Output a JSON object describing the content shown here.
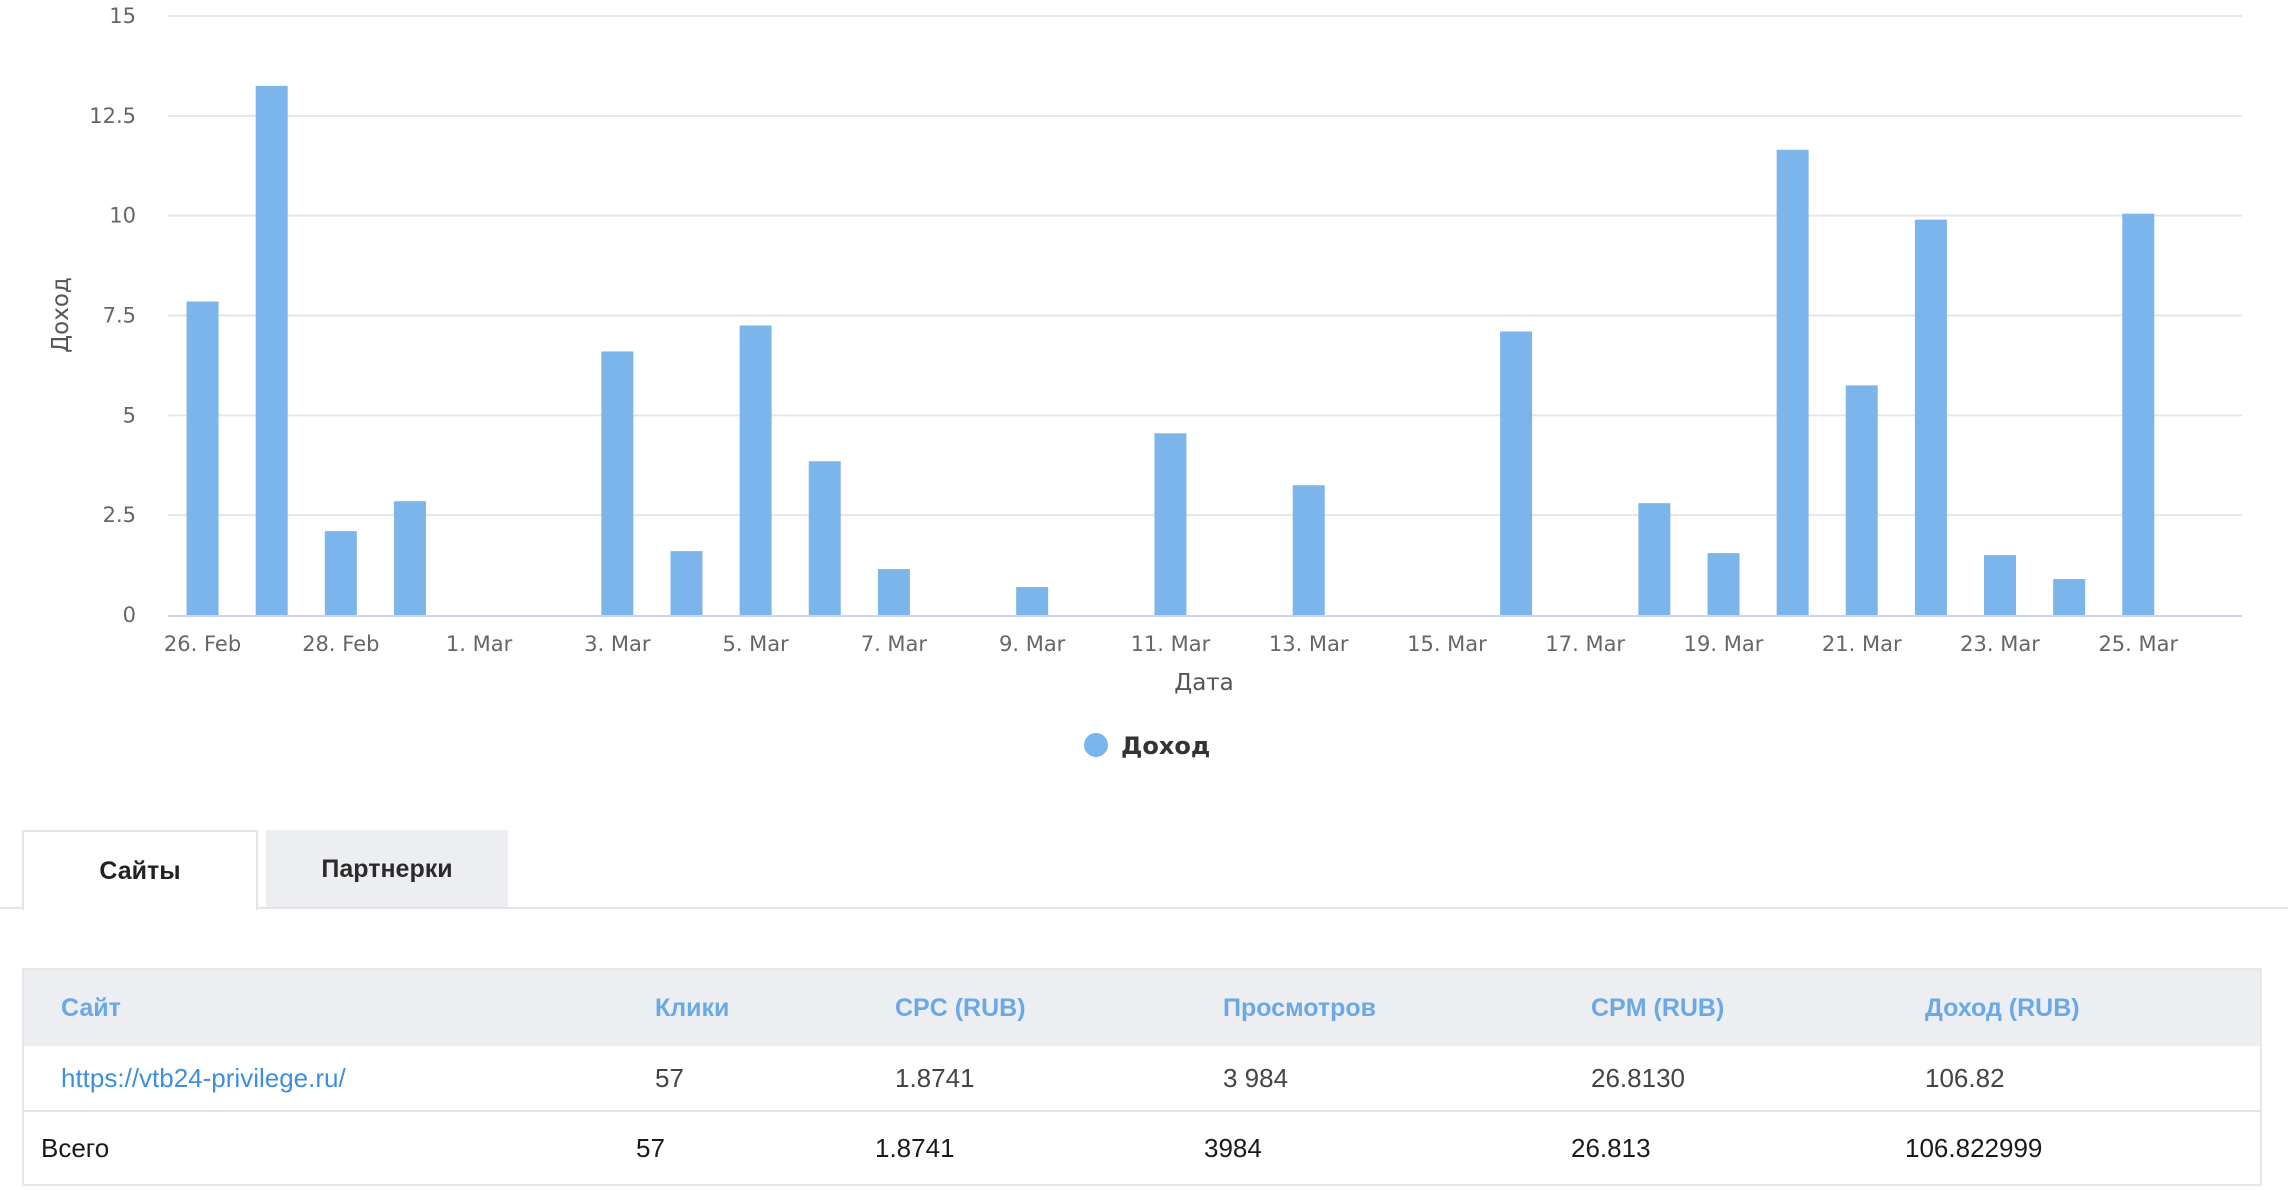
{
  "chart_data": {
    "type": "bar",
    "ylabel": "Доход",
    "xlabel": "Дата",
    "ylim": [
      0,
      15
    ],
    "yticks": [
      "0",
      "2.5",
      "5",
      "7.5",
      "10",
      "12.5",
      "15"
    ],
    "xticks": [
      "26. Feb",
      "28. Feb",
      "1. Mar",
      "3. Mar",
      "5. Mar",
      "7. Mar",
      "9. Mar",
      "11. Mar",
      "13. Mar",
      "15. Mar",
      "17. Mar",
      "19. Mar",
      "21. Mar",
      "23. Mar",
      "25. Mar"
    ],
    "grid": true,
    "legend_position": "bottom-center",
    "categories": [
      "26. Feb",
      "27. Feb",
      "28. Feb",
      "29. Feb",
      "1. Mar",
      "2. Mar",
      "3. Mar",
      "4. Mar",
      "5. Mar",
      "6. Mar",
      "7. Mar",
      "8. Mar",
      "9. Mar",
      "10. Mar",
      "11. Mar",
      "12. Mar",
      "13. Mar",
      "14. Mar",
      "15. Mar",
      "16. Mar",
      "17. Mar",
      "18. Mar",
      "19. Mar",
      "20. Mar",
      "21. Mar",
      "22. Mar",
      "23. Mar",
      "24. Mar",
      "25. Mar"
    ],
    "series": [
      {
        "name": "Доход",
        "color": "#7cb5ec",
        "values": [
          7.85,
          13.25,
          2.1,
          2.85,
          0,
          0,
          6.6,
          1.6,
          7.25,
          3.85,
          1.15,
          0,
          0.7,
          0,
          4.55,
          0,
          3.25,
          0,
          0,
          7.1,
          0,
          2.8,
          1.55,
          11.65,
          5.75,
          9.9,
          1.5,
          0.9,
          10.05
        ]
      }
    ]
  },
  "tabs": [
    {
      "label": "Сайты",
      "active": true
    },
    {
      "label": "Партнерки",
      "active": false
    }
  ],
  "table": {
    "headers": [
      "Сайт",
      "Клики",
      "CPC (RUB)",
      "Просмотров",
      "CPM (RUB)",
      "Доход (RUB)"
    ],
    "rows": [
      {
        "site": "https://vtb24-privilege.ru/",
        "clicks": "57",
        "cpc": "1.8741",
        "views": "3 984",
        "cpm": "26.8130",
        "income": "106.82"
      }
    ],
    "total": {
      "label": "Всего",
      "clicks": "57",
      "cpc": "1.8741",
      "views": "3984",
      "cpm": "26.813",
      "income": "106.822999"
    }
  }
}
